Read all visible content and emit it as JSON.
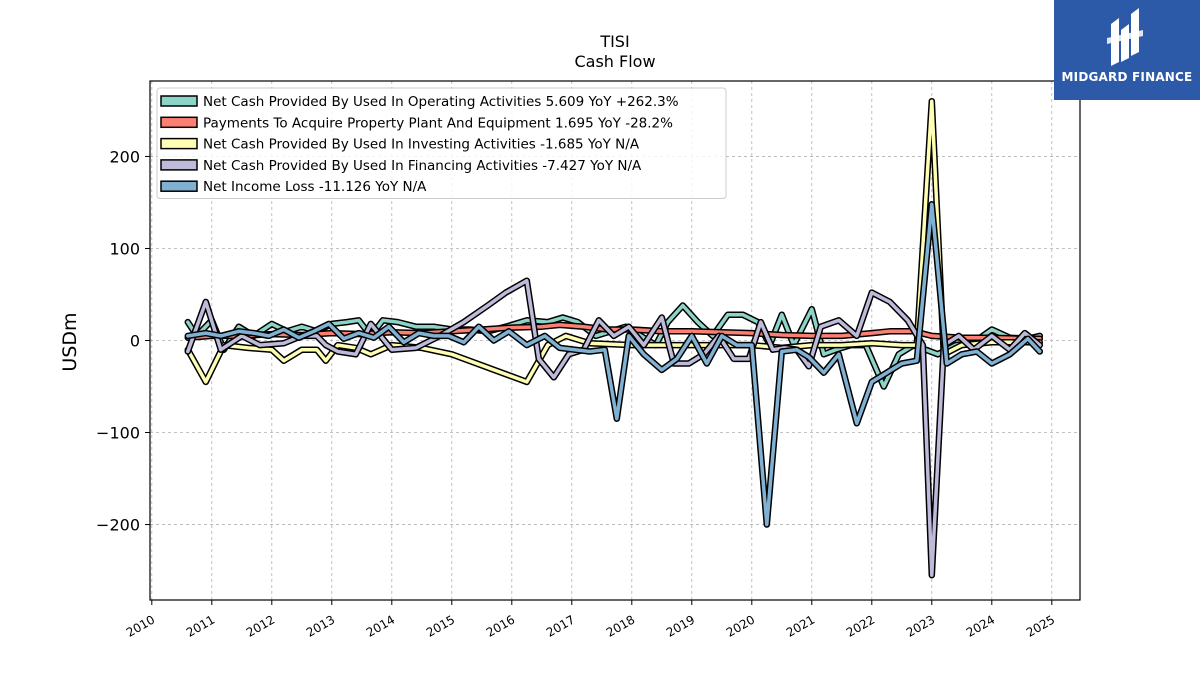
{
  "brand": {
    "name": "MIDGARD FINANCE",
    "color": "#2c5aa8"
  },
  "chart_data": {
    "type": "line",
    "title": "TISI",
    "subtitle": "Cash Flow",
    "ylabel": "USDm",
    "xlabel": "",
    "xlim": [
      2009.97,
      2025.47
    ],
    "ylim": [
      -282,
      282
    ],
    "yticks": [
      -200,
      -100,
      0,
      100,
      200
    ],
    "xticks": [
      2010,
      2011,
      2012,
      2013,
      2014,
      2015,
      2016,
      2017,
      2018,
      2019,
      2020,
      2021,
      2022,
      2023,
      2024,
      2025
    ],
    "grid": true,
    "legend_position": "top-left",
    "series": [
      {
        "name": "Net Cash Provided By Used In Operating Activities",
        "legend": "Net Cash Provided By Used In Operating Activities  5.609 YoY +262.3%",
        "color": "#8dd3c7",
        "points": [
          [
            2010.6,
            20
          ],
          [
            2010.75,
            5
          ],
          [
            2011,
            22
          ],
          [
            2011.2,
            -10
          ],
          [
            2011.45,
            15
          ],
          [
            2011.7,
            5
          ],
          [
            2012,
            18
          ],
          [
            2012.25,
            10
          ],
          [
            2012.5,
            15
          ],
          [
            2012.75,
            10
          ],
          [
            2013,
            18
          ],
          [
            2013.25,
            20
          ],
          [
            2013.45,
            22
          ],
          [
            2013.65,
            5
          ],
          [
            2013.85,
            22
          ],
          [
            2014.1,
            20
          ],
          [
            2014.4,
            15
          ],
          [
            2014.7,
            15
          ],
          [
            2015,
            12
          ],
          [
            2015.3,
            12
          ],
          [
            2015.6,
            10
          ],
          [
            2015.9,
            15
          ],
          [
            2016.25,
            22
          ],
          [
            2016.6,
            20
          ],
          [
            2016.85,
            25
          ],
          [
            2017.1,
            20
          ],
          [
            2017.4,
            5
          ],
          [
            2017.65,
            10
          ],
          [
            2017.9,
            15
          ],
          [
            2018.15,
            5
          ],
          [
            2018.4,
            -5
          ],
          [
            2018.6,
            20
          ],
          [
            2018.85,
            38
          ],
          [
            2019.1,
            20
          ],
          [
            2019.35,
            5
          ],
          [
            2019.6,
            28
          ],
          [
            2019.85,
            28
          ],
          [
            2020.1,
            20
          ],
          [
            2020.3,
            -5
          ],
          [
            2020.5,
            28
          ],
          [
            2020.7,
            -5
          ],
          [
            2021,
            34
          ],
          [
            2021.2,
            -15
          ],
          [
            2021.4,
            -10
          ],
          [
            2021.65,
            -5
          ],
          [
            2021.9,
            -5
          ],
          [
            2022.2,
            -50
          ],
          [
            2022.45,
            -15
          ],
          [
            2022.7,
            -5
          ],
          [
            2022.9,
            -10
          ],
          [
            2023.1,
            -15
          ],
          [
            2023.4,
            -5
          ],
          [
            2023.7,
            -2
          ],
          [
            2024,
            12
          ],
          [
            2024.3,
            3
          ],
          [
            2024.6,
            2
          ],
          [
            2024.8,
            5
          ]
        ]
      },
      {
        "name": "Payments To Acquire Property Plant And Equipment",
        "legend": "Payments To Acquire Property Plant And Equipment  1.695 YoY -28.2%",
        "color": "#fb8072",
        "points": [
          [
            2010.6,
            3
          ],
          [
            2011,
            5
          ],
          [
            2011.5,
            5
          ],
          [
            2012,
            7
          ],
          [
            2012.5,
            6
          ],
          [
            2013,
            8
          ],
          [
            2013.5,
            7
          ],
          [
            2014,
            9
          ],
          [
            2014.5,
            8
          ],
          [
            2015,
            10
          ],
          [
            2015.5,
            12
          ],
          [
            2016,
            14
          ],
          [
            2016.5,
            15
          ],
          [
            2016.8,
            17
          ],
          [
            2017.2,
            15
          ],
          [
            2017.6,
            12
          ],
          [
            2018,
            12
          ],
          [
            2018.5,
            10
          ],
          [
            2019,
            10
          ],
          [
            2019.5,
            9
          ],
          [
            2020,
            8
          ],
          [
            2020.5,
            6
          ],
          [
            2021,
            5
          ],
          [
            2021.5,
            5
          ],
          [
            2022,
            8
          ],
          [
            2022.3,
            10
          ],
          [
            2022.7,
            10
          ],
          [
            2023,
            5
          ],
          [
            2023.5,
            3
          ],
          [
            2024,
            3
          ],
          [
            2024.5,
            2
          ],
          [
            2024.8,
            2
          ]
        ]
      },
      {
        "name": "Net Cash Provided By Used In Investing Activities",
        "legend": "Net Cash Provided By Used In Investing Activities  -1.685 YoY N/A",
        "color": "#ffffb3",
        "points": [
          [
            2010.6,
            -10
          ],
          [
            2010.9,
            -45
          ],
          [
            2011.2,
            -5
          ],
          [
            2011.6,
            -8
          ],
          [
            2012,
            -10
          ],
          [
            2012.2,
            -22
          ],
          [
            2012.5,
            -10
          ],
          [
            2012.75,
            -10
          ],
          [
            2012.9,
            -22
          ],
          [
            2013.1,
            -5
          ],
          [
            2013.4,
            -8
          ],
          [
            2013.65,
            -15
          ],
          [
            2014,
            -5
          ],
          [
            2014.5,
            -8
          ],
          [
            2015,
            -15
          ],
          [
            2016.25,
            -45
          ],
          [
            2016.6,
            -5
          ],
          [
            2016.9,
            5
          ],
          [
            2017.3,
            -3
          ],
          [
            2018,
            -5
          ],
          [
            2018.5,
            -5
          ],
          [
            2019,
            -5
          ],
          [
            2019.5,
            -5
          ],
          [
            2020,
            -5
          ],
          [
            2020.5,
            -8
          ],
          [
            2021,
            -5
          ],
          [
            2021.5,
            -5
          ],
          [
            2022,
            -3
          ],
          [
            2022.5,
            -5
          ],
          [
            2022.75,
            -5
          ],
          [
            2023,
            260
          ],
          [
            2023.2,
            -15
          ],
          [
            2023.5,
            -5
          ],
          [
            2024,
            -2
          ],
          [
            2024.5,
            -2
          ],
          [
            2024.8,
            -2
          ]
        ]
      },
      {
        "name": "Net Cash Provided By Used In Financing Activities",
        "legend": "Net Cash Provided By Used In Financing Activities  -7.427 YoY N/A",
        "color": "#bebada",
        "points": [
          [
            2010.6,
            -12
          ],
          [
            2010.9,
            42
          ],
          [
            2011.15,
            -10
          ],
          [
            2011.5,
            5
          ],
          [
            2011.8,
            -5
          ],
          [
            2012.2,
            -3
          ],
          [
            2012.5,
            5
          ],
          [
            2012.75,
            5
          ],
          [
            2012.9,
            -5
          ],
          [
            2013.1,
            -12
          ],
          [
            2013.4,
            -15
          ],
          [
            2013.65,
            18
          ],
          [
            2014,
            -10
          ],
          [
            2014.4,
            -8
          ],
          [
            2014.8,
            5
          ],
          [
            2015.2,
            20
          ],
          [
            2015.6,
            38
          ],
          [
            2015.9,
            52
          ],
          [
            2016.25,
            65
          ],
          [
            2016.45,
            -20
          ],
          [
            2016.7,
            -40
          ],
          [
            2016.95,
            -15
          ],
          [
            2017.2,
            -10
          ],
          [
            2017.45,
            22
          ],
          [
            2017.7,
            5
          ],
          [
            2017.95,
            15
          ],
          [
            2018.2,
            -5
          ],
          [
            2018.5,
            25
          ],
          [
            2018.7,
            -25
          ],
          [
            2018.95,
            -25
          ],
          [
            2019.2,
            -15
          ],
          [
            2019.45,
            5
          ],
          [
            2019.7,
            -20
          ],
          [
            2019.95,
            -20
          ],
          [
            2020.15,
            20
          ],
          [
            2020.35,
            -10
          ],
          [
            2020.55,
            -8
          ],
          [
            2020.75,
            -10
          ],
          [
            2020.95,
            -28
          ],
          [
            2021.15,
            15
          ],
          [
            2021.45,
            22
          ],
          [
            2021.75,
            5
          ],
          [
            2022,
            52
          ],
          [
            2022.3,
            42
          ],
          [
            2022.6,
            22
          ],
          [
            2022.85,
            -5
          ],
          [
            2023,
            -255
          ],
          [
            2023.2,
            -5
          ],
          [
            2023.45,
            5
          ],
          [
            2023.7,
            -10
          ],
          [
            2024,
            5
          ],
          [
            2024.3,
            -10
          ],
          [
            2024.55,
            8
          ],
          [
            2024.8,
            -5
          ]
        ]
      },
      {
        "name": "Net Income Loss",
        "legend": "Net Income Loss  -11.126 YoY N/A",
        "color": "#80b1d3",
        "points": [
          [
            2010.6,
            5
          ],
          [
            2010.9,
            8
          ],
          [
            2011.15,
            5
          ],
          [
            2011.45,
            10
          ],
          [
            2011.7,
            8
          ],
          [
            2011.95,
            5
          ],
          [
            2012.2,
            12
          ],
          [
            2012.45,
            3
          ],
          [
            2012.7,
            10
          ],
          [
            2012.95,
            18
          ],
          [
            2013.2,
            2
          ],
          [
            2013.45,
            8
          ],
          [
            2013.7,
            3
          ],
          [
            2013.95,
            15
          ],
          [
            2014.2,
            -2
          ],
          [
            2014.45,
            8
          ],
          [
            2014.7,
            5
          ],
          [
            2014.95,
            5
          ],
          [
            2015.2,
            -2
          ],
          [
            2015.45,
            15
          ],
          [
            2015.7,
            0
          ],
          [
            2015.95,
            10
          ],
          [
            2016.25,
            -5
          ],
          [
            2016.55,
            5
          ],
          [
            2016.8,
            -8
          ],
          [
            2017.05,
            -10
          ],
          [
            2017.3,
            -12
          ],
          [
            2017.55,
            -10
          ],
          [
            2017.75,
            -85
          ],
          [
            2017.95,
            5
          ],
          [
            2018.2,
            -15
          ],
          [
            2018.5,
            -32
          ],
          [
            2018.75,
            -20
          ],
          [
            2019,
            5
          ],
          [
            2019.25,
            -25
          ],
          [
            2019.5,
            5
          ],
          [
            2019.75,
            -5
          ],
          [
            2020,
            -5
          ],
          [
            2020.25,
            -200
          ],
          [
            2020.5,
            -12
          ],
          [
            2020.75,
            -10
          ],
          [
            2020.95,
            -18
          ],
          [
            2021.2,
            -35
          ],
          [
            2021.45,
            -15
          ],
          [
            2021.75,
            -90
          ],
          [
            2022,
            -45
          ],
          [
            2022.25,
            -35
          ],
          [
            2022.5,
            -25
          ],
          [
            2022.75,
            -22
          ],
          [
            2023,
            148
          ],
          [
            2023.25,
            -25
          ],
          [
            2023.5,
            -15
          ],
          [
            2023.75,
            -12
          ],
          [
            2024,
            -25
          ],
          [
            2024.3,
            -15
          ],
          [
            2024.6,
            2
          ],
          [
            2024.8,
            -12
          ]
        ]
      }
    ]
  }
}
